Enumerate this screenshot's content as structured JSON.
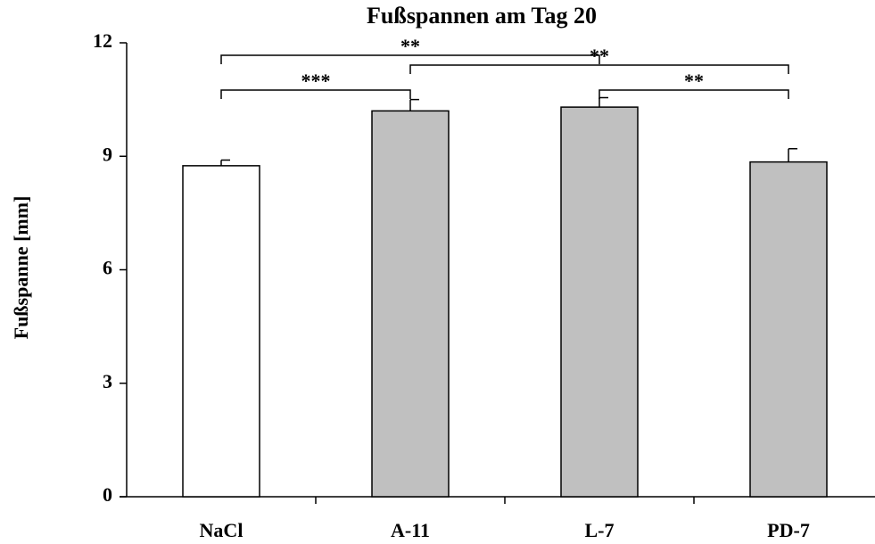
{
  "chart_data": {
    "type": "bar",
    "title": "Fußspannen am Tag 20",
    "y_label": "Fußspanne [mm]",
    "categories": [
      "NaCl",
      "A-11",
      "L-7",
      "PD-7"
    ],
    "values": [
      8.75,
      10.2,
      10.3,
      8.85
    ],
    "errors": [
      0.15,
      0.3,
      0.25,
      0.35
    ],
    "colors": [
      "#ffffff",
      "#c0c0c0",
      "#c0c0c0",
      "#c0c0c0"
    ],
    "ylim": [
      0,
      12
    ],
    "yticks": [
      0,
      3,
      6,
      9,
      12
    ],
    "grid": false,
    "annotations": [
      {
        "label": "**",
        "from": "NaCl",
        "to": "L-7"
      },
      {
        "label": "**",
        "from": "A-11",
        "to": "PD-7"
      },
      {
        "label": "***",
        "from": "NaCl",
        "to": "A-11"
      },
      {
        "label": "**",
        "from": "L-7",
        "to": "PD-7"
      }
    ]
  }
}
